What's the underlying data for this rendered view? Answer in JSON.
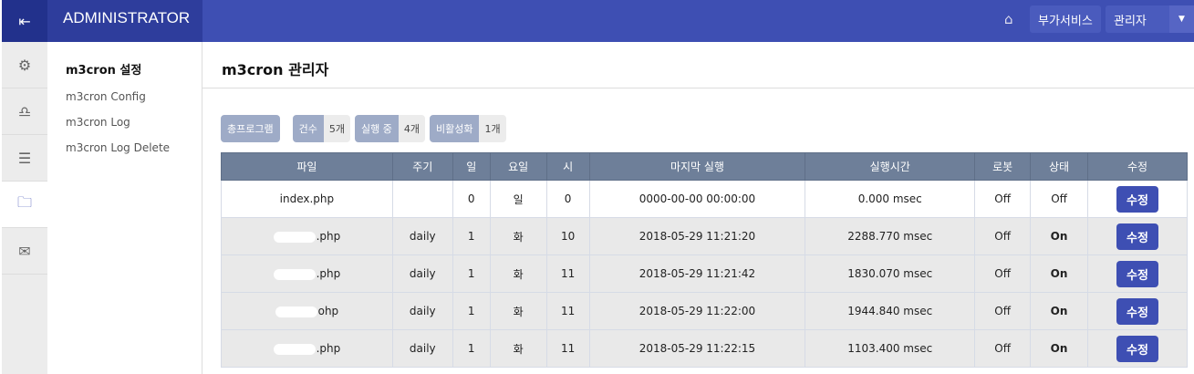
{
  "header": {
    "title": "ADMINISTRATOR",
    "extra_services": "부가서비스",
    "admin_menu": "관리자"
  },
  "sidebar": {
    "section_title": "m3cron 설정",
    "items": [
      "m3cron Config",
      "m3cron Log",
      "m3cron Log Delete"
    ]
  },
  "iconbar": [
    "gear-icon",
    "user-icon",
    "list-icon",
    "folder-icon",
    "mail-icon"
  ],
  "page": {
    "title": "m3cron 관리자"
  },
  "badges": {
    "total": "총프로그램",
    "count_label": "건수",
    "count": "5개",
    "running_label": "실행 중",
    "running": "4개",
    "inactive_label": "비활성화",
    "inactive": "1개"
  },
  "table": {
    "headers": [
      "파일",
      "주기",
      "일",
      "요일",
      "시",
      "마지막 실행",
      "실행시간",
      "로봇",
      "상태",
      "수정"
    ],
    "rows": [
      {
        "file": "index.php",
        "cycle": "",
        "day": "0",
        "weekday": "일",
        "hour": "0",
        "last": "0000-00-00 00:00:00",
        "time": "0.000 msec",
        "robot": "Off",
        "status": "Off",
        "edit": "수정"
      },
      {
        "file": ".php",
        "cycle": "daily",
        "day": "1",
        "weekday": "화",
        "hour": "10",
        "last": "2018-05-29 11:21:20",
        "time": "2288.770 msec",
        "robot": "Off",
        "status": "On",
        "edit": "수정"
      },
      {
        "file": ".php",
        "cycle": "daily",
        "day": "1",
        "weekday": "화",
        "hour": "11",
        "last": "2018-05-29 11:21:42",
        "time": "1830.070 msec",
        "robot": "Off",
        "status": "On",
        "edit": "수정"
      },
      {
        "file": "ohp",
        "cycle": "daily",
        "day": "1",
        "weekday": "화",
        "hour": "11",
        "last": "2018-05-29 11:22:00",
        "time": "1944.840 msec",
        "robot": "Off",
        "status": "On",
        "edit": "수정"
      },
      {
        "file": ".php",
        "cycle": "daily",
        "day": "1",
        "weekday": "화",
        "hour": "11",
        "last": "2018-05-29 11:22:15",
        "time": "1103.400 msec",
        "robot": "Off",
        "status": "On",
        "edit": "수정"
      }
    ]
  },
  "colors": {
    "primary": "#3e4fb3",
    "table_header": "#6e7f99",
    "badge": "#9eabc7"
  }
}
